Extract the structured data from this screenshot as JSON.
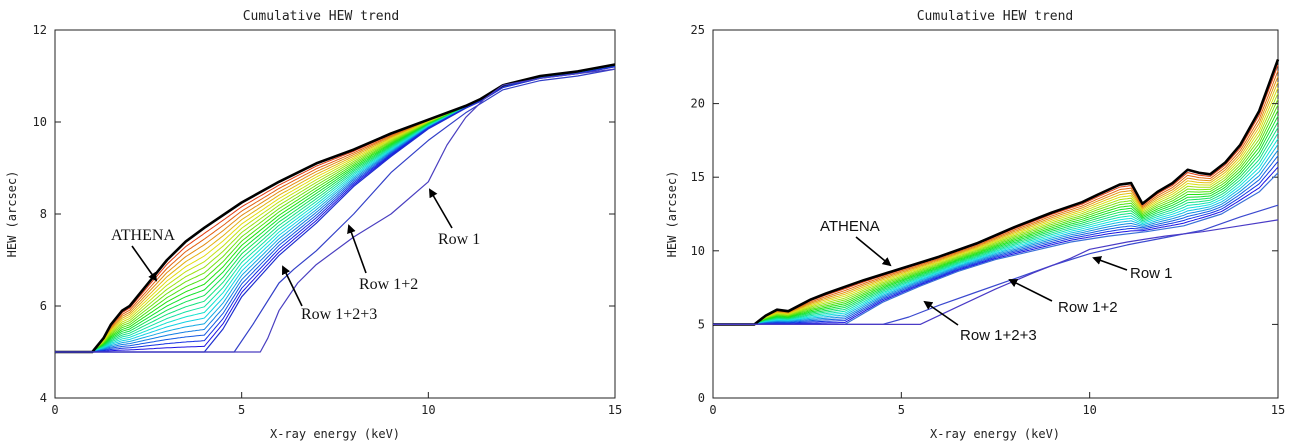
{
  "chart_data": [
    {
      "type": "line",
      "title": "Cumulative HEW trend",
      "xlabel": "X-ray energy (keV)",
      "ylabel": "HEW (arcsec)",
      "xlim": [
        0,
        15
      ],
      "ylim": [
        4,
        12
      ],
      "xticks": [
        0,
        5,
        10,
        15
      ],
      "yticks": [
        4,
        6,
        8,
        10,
        12
      ],
      "grid": false,
      "colormap": "rainbow (red to violet), black envelope",
      "annotations": [
        {
          "text": "ATHENA",
          "target_x": 2.7,
          "target_y": 6.6
        },
        {
          "text": "Row 1+2+3",
          "target_x": 6.0,
          "target_y": 6.9
        },
        {
          "text": "Row 1+2",
          "target_x": 7.8,
          "target_y": 8.0
        },
        {
          "text": "Row 1",
          "target_x": 10.0,
          "target_y": 8.6
        }
      ],
      "series": [
        {
          "name": "ATHENA",
          "color": "#000000",
          "x": [
            0,
            1.0,
            1.3,
            1.5,
            1.8,
            2.0,
            2.3,
            2.6,
            3.0,
            3.5,
            4.0,
            5.0,
            6.0,
            7.0,
            8.0,
            9.0,
            10.0,
            11.0,
            11.4,
            12.0,
            13.0,
            14.0,
            15.0
          ],
          "y": [
            5.0,
            5.0,
            5.3,
            5.6,
            5.9,
            6.0,
            6.3,
            6.6,
            7.0,
            7.4,
            7.7,
            8.25,
            8.7,
            9.1,
            9.4,
            9.75,
            10.05,
            10.35,
            10.5,
            10.8,
            11.0,
            11.1,
            11.25
          ]
        },
        {
          "name": "Row 1+2+3",
          "x": [
            0,
            4.0,
            4.5,
            5.0,
            6.0,
            7.0,
            8.0,
            9.0,
            10.0,
            11.0,
            11.4,
            12.0,
            13.0,
            14.0,
            15.0
          ],
          "y": [
            5.0,
            5.0,
            5.5,
            6.2,
            7.1,
            7.8,
            8.6,
            9.25,
            9.85,
            10.3,
            10.45,
            10.75,
            10.95,
            11.05,
            11.2
          ]
        },
        {
          "name": "Row 1+2",
          "x": [
            0,
            4.8,
            5.3,
            6.0,
            6.4,
            7.0,
            8.0,
            9.0,
            10.0,
            11.0,
            11.4,
            12.0,
            13.0,
            14.0,
            15.0
          ],
          "y": [
            5.0,
            5.0,
            5.6,
            6.5,
            6.8,
            7.2,
            8.0,
            8.9,
            9.6,
            10.2,
            10.4,
            10.7,
            10.9,
            11.0,
            11.15
          ]
        },
        {
          "name": "Row 1",
          "x": [
            0,
            5.5,
            5.7,
            6.0,
            6.5,
            7.0,
            8.0,
            9.0,
            10.0,
            10.5,
            11.0,
            11.5,
            12.0,
            13.0,
            14.0,
            15.0
          ],
          "y": [
            5.0,
            5.0,
            5.3,
            5.9,
            6.5,
            6.9,
            7.5,
            8.0,
            8.7,
            9.5,
            10.1,
            10.5,
            10.8,
            10.95,
            11.05,
            11.15
          ]
        }
      ]
    },
    {
      "type": "line",
      "title": "Cumulative HEW trend",
      "xlabel": "X-ray energy (keV)",
      "ylabel": "HEW (arcsec)",
      "xlim": [
        0,
        15
      ],
      "ylim": [
        0,
        25
      ],
      "xticks": [
        0,
        5,
        10,
        15
      ],
      "yticks": [
        0,
        5,
        10,
        15,
        20,
        25
      ],
      "grid": false,
      "colormap": "rainbow (red to violet), black envelope",
      "annotations": [
        {
          "text": "ATHENA",
          "target_x": 4.8,
          "target_y": 8.8
        },
        {
          "text": "Row 1+2+3",
          "target_x": 4.1,
          "target_y": 6.1
        },
        {
          "text": "Row 1+2",
          "target_x": 7.3,
          "target_y": 8.0
        },
        {
          "text": "Row 1",
          "target_x": 9.9,
          "target_y": 10.0
        }
      ],
      "series": [
        {
          "name": "ATHENA",
          "color": "#000000",
          "x": [
            0,
            1.1,
            1.4,
            1.7,
            2.0,
            2.3,
            2.6,
            3.0,
            4.0,
            5.0,
            6.0,
            7.0,
            8.0,
            9.0,
            9.8,
            10.2,
            10.8,
            11.1,
            11.4,
            11.8,
            12.2,
            12.6,
            12.9,
            13.2,
            13.6,
            14.0,
            14.5,
            15.0
          ],
          "y": [
            5.0,
            5.0,
            5.6,
            6.0,
            5.9,
            6.3,
            6.7,
            7.1,
            8.0,
            8.8,
            9.6,
            10.5,
            11.6,
            12.6,
            13.3,
            13.8,
            14.5,
            14.6,
            13.2,
            14.0,
            14.6,
            15.5,
            15.3,
            15.2,
            16.0,
            17.2,
            19.5,
            23.0
          ]
        },
        {
          "name": "Row 1+2+3",
          "x": [
            0,
            3.5,
            4.5,
            5.5,
            6.5,
            7.5,
            8.5,
            9.5,
            10.5,
            11.5,
            12.5,
            13.5,
            14.5,
            15.0
          ],
          "y": [
            5.0,
            5.0,
            6.5,
            7.6,
            8.6,
            9.4,
            10.0,
            10.6,
            11.0,
            11.3,
            11.7,
            12.5,
            14.0,
            15.3
          ]
        },
        {
          "name": "Row 1+2",
          "x": [
            0,
            4.5,
            5.2,
            6.0,
            7.0,
            8.0,
            9.0,
            10.0,
            11.0,
            12.0,
            13.0,
            14.0,
            15.0
          ],
          "y": [
            5.0,
            5.0,
            5.5,
            6.3,
            7.2,
            8.1,
            9.0,
            9.8,
            10.4,
            10.9,
            11.4,
            12.3,
            13.1
          ]
        },
        {
          "name": "Row 1",
          "x": [
            0,
            5.5,
            6.5,
            7.5,
            8.5,
            9.5,
            10.0,
            11.0,
            12.0,
            13.0,
            14.0,
            15.0
          ],
          "y": [
            5.0,
            5.0,
            6.2,
            7.4,
            8.5,
            9.5,
            10.1,
            10.6,
            11.0,
            11.3,
            11.7,
            12.1
          ]
        }
      ]
    }
  ]
}
